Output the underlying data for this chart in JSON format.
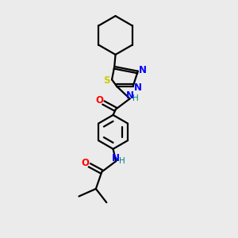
{
  "bg_color": "#ebebeb",
  "bond_color": "#000000",
  "N_color": "#0000ff",
  "O_color": "#ff0000",
  "S_color": "#cccc00",
  "H_color": "#008080",
  "line_width": 1.6,
  "figsize": [
    3.0,
    3.0
  ],
  "dpi": 100,
  "xlim": [
    0,
    10
  ],
  "ylim": [
    0,
    10
  ]
}
